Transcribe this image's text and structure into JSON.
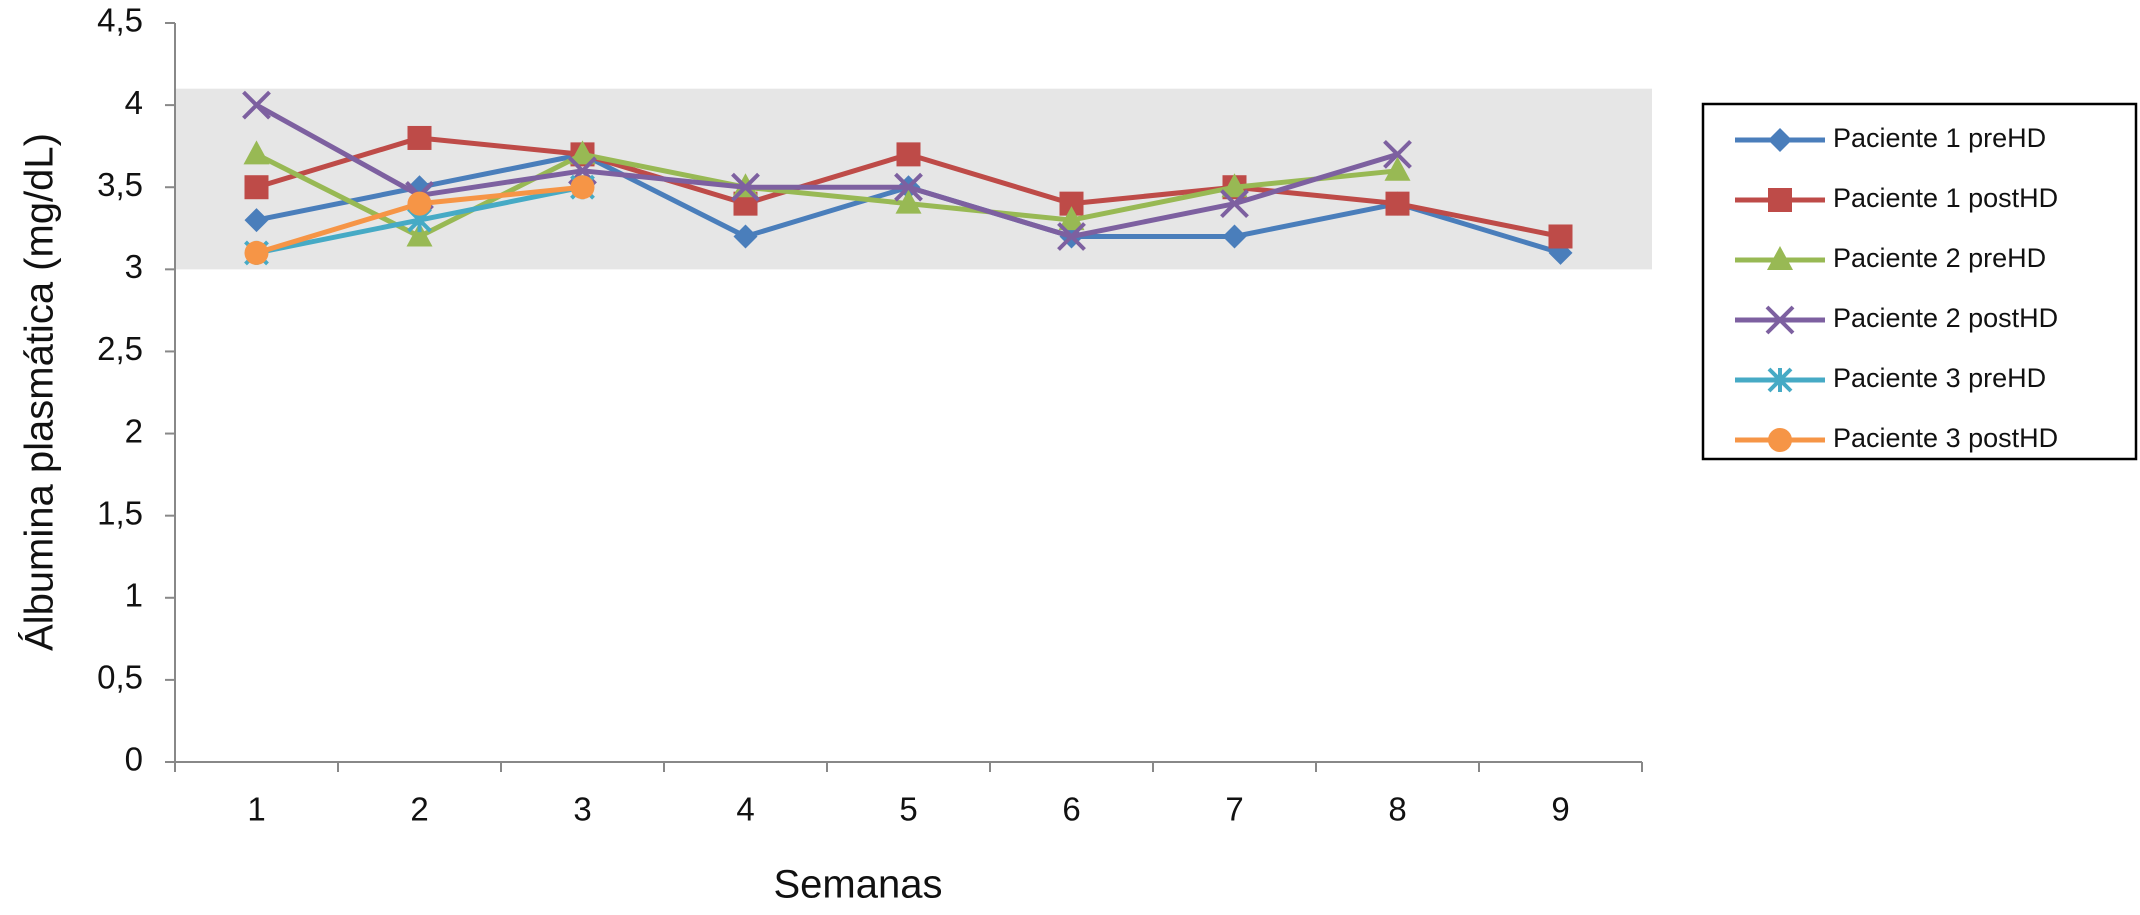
{
  "chart_data": {
    "type": "line",
    "x_label": "Semanas",
    "y_label": "Álbumina plasmática (mg/dL)",
    "categories": [
      "1",
      "2",
      "3",
      "4",
      "5",
      "6",
      "7",
      "8",
      "9"
    ],
    "ylim": [
      0,
      4.5
    ],
    "yticks": [
      0,
      {
        "value": 0.5,
        "label": "0,5"
      },
      1,
      {
        "value": 1.5,
        "label": "1,5"
      },
      2,
      {
        "value": 2.5,
        "label": "2,5"
      },
      3,
      {
        "value": 3.5,
        "label": "3,5"
      },
      4,
      {
        "value": 4.5,
        "label": "4,5"
      }
    ],
    "reference_band": [
      3,
      4.1
    ],
    "band_color": "#e6e6e6",
    "legend": "right",
    "series": [
      {
        "name": "Paciente 1 preHD",
        "color": "#4a7ebb",
        "marker": "diamond",
        "values": [
          3.3,
          3.5,
          3.7,
          3.2,
          3.5,
          3.2,
          3.2,
          3.4,
          3.1
        ]
      },
      {
        "name": "Paciente 1 postHD",
        "color": "#be4b48",
        "marker": "square",
        "values": [
          3.5,
          3.8,
          3.7,
          3.4,
          3.7,
          3.4,
          3.5,
          3.4,
          3.2
        ]
      },
      {
        "name": "Paciente 2 preHD",
        "color": "#98b954",
        "marker": "triangle",
        "values": [
          3.7,
          3.2,
          3.7,
          3.5,
          3.4,
          3.3,
          3.5,
          3.6,
          null
        ]
      },
      {
        "name": "Paciente 2 postHD",
        "color": "#7d60a0",
        "marker": "x",
        "values": [
          4.0,
          3.45,
          3.6,
          3.5,
          3.5,
          3.2,
          3.4,
          3.7,
          null
        ]
      },
      {
        "name": "Paciente 3 preHD",
        "color": "#46aac5",
        "marker": "star",
        "values": [
          3.1,
          3.3,
          3.5,
          null,
          null,
          null,
          null,
          null,
          null
        ]
      },
      {
        "name": "Paciente 3 postHD",
        "color": "#f69546",
        "marker": "circle",
        "values": [
          3.1,
          3.4,
          3.5,
          null,
          null,
          null,
          null,
          null,
          null
        ]
      }
    ]
  }
}
